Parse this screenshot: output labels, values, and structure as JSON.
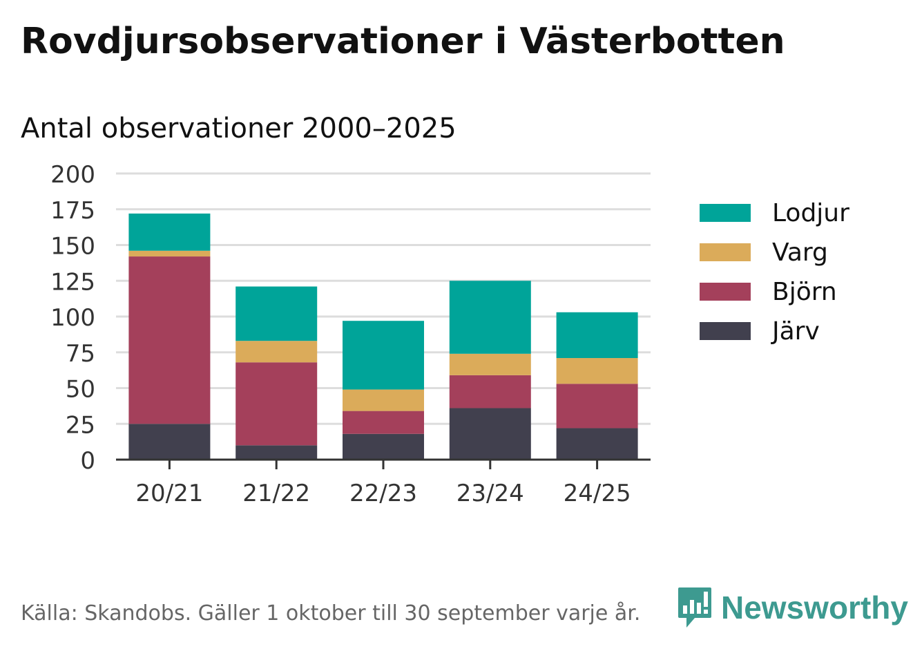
{
  "title": "Rovdjursobservationer i Västerbotten",
  "subtitle": "Antal observationer 2000–2025",
  "source": "Källa: Skandobs. Gäller 1 oktober till 30 september varje år.",
  "brand": {
    "name": "Newsworthy",
    "icon": "newsworthy-logo-icon",
    "color": "#3d9a90"
  },
  "chart_data": {
    "type": "bar",
    "stacked": true,
    "title": "Antal observationer 2000–2025",
    "xlabel": "",
    "ylabel": "",
    "ylim": [
      0,
      200
    ],
    "yticks": [
      "0",
      "25",
      "50",
      "75",
      "100",
      "125",
      "150",
      "175",
      "200"
    ],
    "categories": [
      "20/21",
      "21/22",
      "22/23",
      "23/24",
      "24/25"
    ],
    "grid": true,
    "legend_position": "right",
    "series": [
      {
        "name": "Järv",
        "color": "#41404e",
        "values": [
          25,
          10,
          18,
          36,
          22
        ]
      },
      {
        "name": "Björn",
        "color": "#a4405b",
        "values": [
          117,
          58,
          16,
          23,
          31
        ]
      },
      {
        "name": "Varg",
        "color": "#dbab5a",
        "values": [
          4,
          15,
          15,
          15,
          18
        ]
      },
      {
        "name": "Lodjur",
        "color": "#00a499",
        "values": [
          26,
          38,
          48,
          51,
          32
        ]
      }
    ]
  }
}
